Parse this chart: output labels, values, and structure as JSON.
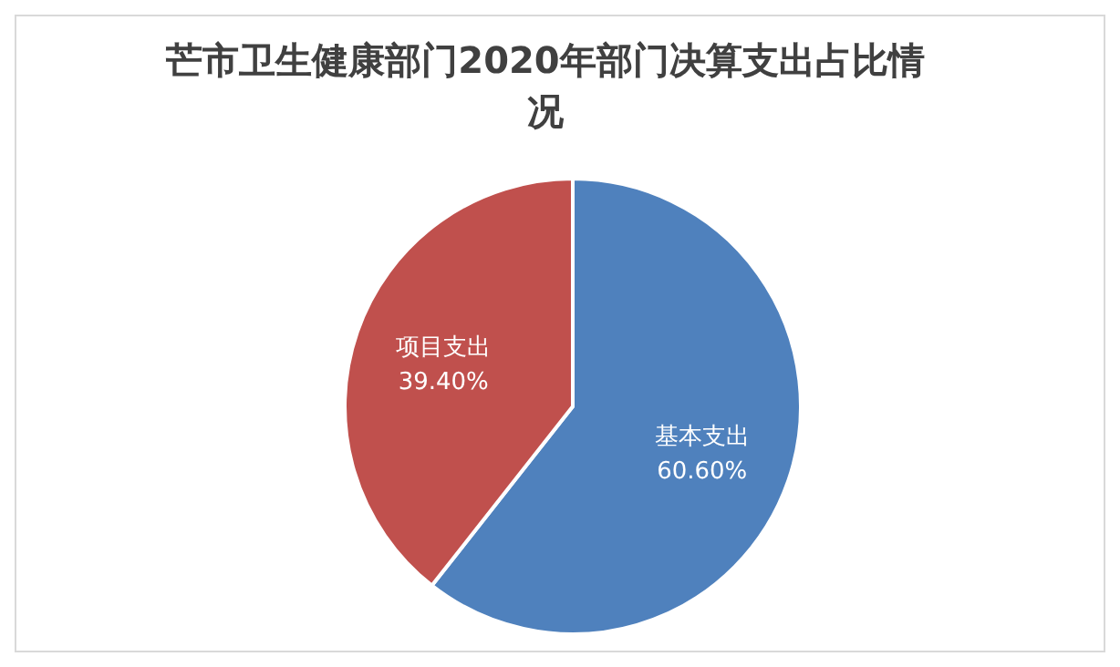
{
  "chart_data": {
    "type": "pie",
    "title": "芒市卫生健康部门2020年部门决算支出占比情况",
    "categories": [
      "基本支出",
      "项目支出"
    ],
    "values": [
      60.6,
      39.4
    ],
    "colors": [
      "#4f81bd",
      "#c0504d"
    ],
    "value_labels": [
      "60.60%",
      "39.40%"
    ],
    "legend": false
  }
}
